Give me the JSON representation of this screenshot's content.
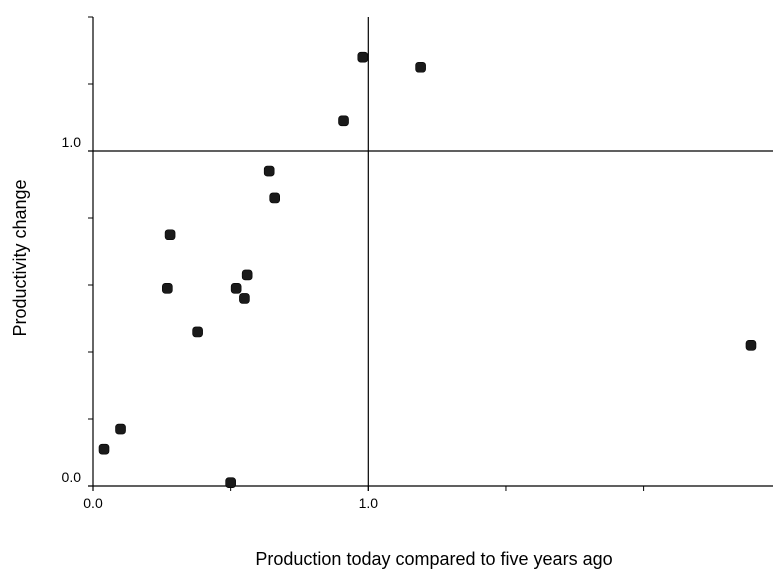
{
  "chart_data": {
    "type": "scatter",
    "title": "",
    "xlabel": "Production today compared to five years ago",
    "ylabel": "Productivity change",
    "xlim": [
      0.0,
      2.47
    ],
    "ylim": [
      0.0,
      1.4
    ],
    "x_tick_labels": [
      {
        "value": 0.0,
        "label": "0.0"
      },
      {
        "value": 1.0,
        "label": "1.0"
      }
    ],
    "x_minor_ticks": [
      0.5,
      1.5,
      2.0
    ],
    "y_tick_labels": [
      {
        "value": 0.0,
        "label": "0.0"
      },
      {
        "value": 1.0,
        "label": "1.0"
      }
    ],
    "y_minor_ticks": [
      0.2,
      0.4,
      0.6,
      0.8,
      1.2
    ],
    "reference_lines": {
      "x": 1.0,
      "y": 1.0
    },
    "grid": false,
    "marker_color": "#1a1a1a",
    "points": [
      {
        "x": 0.04,
        "y": 0.11
      },
      {
        "x": 0.1,
        "y": 0.17
      },
      {
        "x": 0.27,
        "y": 0.59
      },
      {
        "x": 0.28,
        "y": 0.75
      },
      {
        "x": 0.38,
        "y": 0.46
      },
      {
        "x": 0.5,
        "y": 0.01
      },
      {
        "x": 0.52,
        "y": 0.59
      },
      {
        "x": 0.55,
        "y": 0.56
      },
      {
        "x": 0.56,
        "y": 0.63
      },
      {
        "x": 0.64,
        "y": 0.94
      },
      {
        "x": 0.66,
        "y": 0.86
      },
      {
        "x": 0.91,
        "y": 1.09
      },
      {
        "x": 0.98,
        "y": 1.28
      },
      {
        "x": 1.19,
        "y": 1.25
      },
      {
        "x": 2.39,
        "y": 0.42
      }
    ]
  }
}
